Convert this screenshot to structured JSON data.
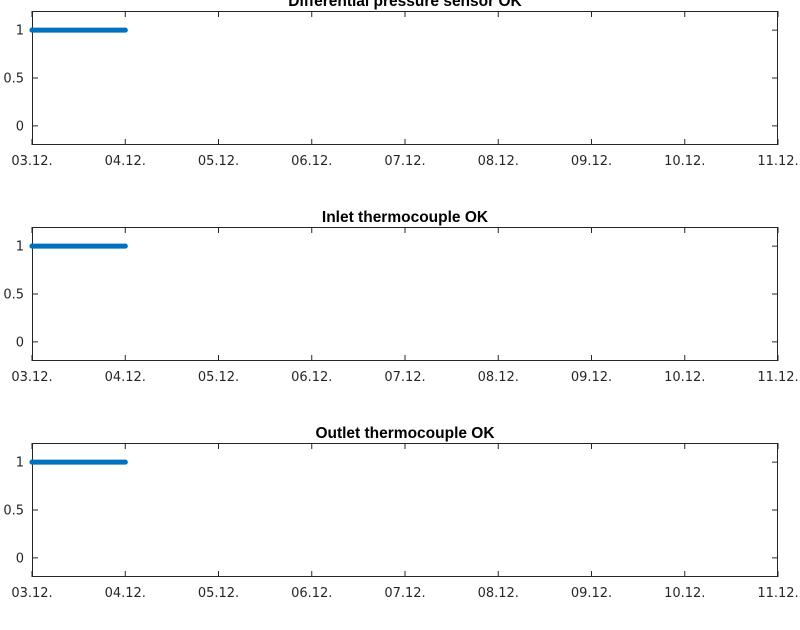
{
  "colors": {
    "series": "#0072BD",
    "axis": "#262626",
    "background": "#ffffff"
  },
  "chart_data": [
    {
      "type": "line",
      "title": "Differential pressure sensor OK",
      "xlabel": "",
      "ylabel": "",
      "x_ticks": [
        "03.12.",
        "04.12.",
        "05.12.",
        "06.12.",
        "07.12.",
        "08.12.",
        "09.12.",
        "10.12.",
        "11.12."
      ],
      "y_ticks": [
        "0",
        "0.5",
        "1"
      ],
      "y_tick_values": [
        0,
        0.5,
        1
      ],
      "xlim": [
        "03.12.",
        "11.12."
      ],
      "ylim": [
        -0.2,
        1.2
      ],
      "grid": false,
      "series": [
        {
          "x": [
            "03.12.",
            "04.12."
          ],
          "values": [
            1,
            1
          ]
        }
      ]
    },
    {
      "type": "line",
      "title": "Inlet thermocouple OK",
      "xlabel": "",
      "ylabel": "",
      "x_ticks": [
        "03.12.",
        "04.12.",
        "05.12.",
        "06.12.",
        "07.12.",
        "08.12.",
        "09.12.",
        "10.12.",
        "11.12."
      ],
      "y_ticks": [
        "0",
        "0.5",
        "1"
      ],
      "y_tick_values": [
        0,
        0.5,
        1
      ],
      "xlim": [
        "03.12.",
        "11.12."
      ],
      "ylim": [
        -0.2,
        1.2
      ],
      "grid": false,
      "series": [
        {
          "x": [
            "03.12.",
            "04.12."
          ],
          "values": [
            1,
            1
          ]
        }
      ]
    },
    {
      "type": "line",
      "title": "Outlet thermocouple OK",
      "xlabel": "",
      "ylabel": "",
      "x_ticks": [
        "03.12.",
        "04.12.",
        "05.12.",
        "06.12.",
        "07.12.",
        "08.12.",
        "09.12.",
        "10.12.",
        "11.12."
      ],
      "y_ticks": [
        "0",
        "0.5",
        "1"
      ],
      "y_tick_values": [
        0,
        0.5,
        1
      ],
      "xlim": [
        "03.12.",
        "11.12."
      ],
      "ylim": [
        -0.2,
        1.2
      ],
      "grid": false,
      "series": [
        {
          "x": [
            "03.12.",
            "04.12."
          ],
          "values": [
            1,
            1
          ]
        }
      ]
    }
  ]
}
